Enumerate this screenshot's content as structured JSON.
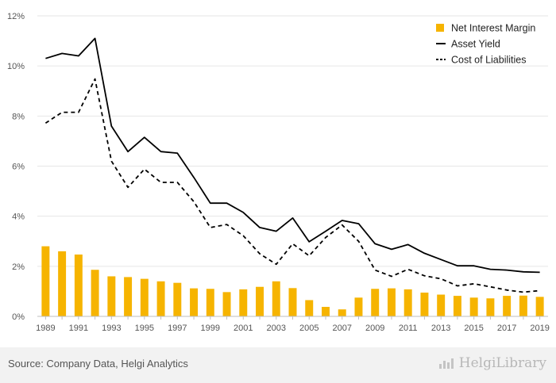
{
  "chart_data": {
    "type": "bar",
    "x": [
      1989,
      1990,
      1991,
      1992,
      1993,
      1994,
      1995,
      1996,
      1997,
      1998,
      1999,
      2000,
      2001,
      2002,
      2003,
      2004,
      2005,
      2006,
      2007,
      2008,
      2009,
      2010,
      2011,
      2012,
      2013,
      2014,
      2015,
      2016,
      2017,
      2018,
      2019
    ],
    "x_tick_labels": [
      "1989",
      "1991",
      "1993",
      "1995",
      "1997",
      "1999",
      "2001",
      "2003",
      "2005",
      "2007",
      "2009",
      "2011",
      "2013",
      "2015",
      "2017",
      "2019"
    ],
    "y_tick_labels": [
      "0%",
      "2%",
      "4%",
      "6%",
      "8%",
      "10%",
      "12%"
    ],
    "ylim": [
      0,
      12
    ],
    "grid": true,
    "legend_position": "top-right",
    "series": [
      {
        "name": "Net Interest Margin",
        "kind": "bar",
        "color": "#f6b400",
        "values": [
          2.8,
          2.6,
          2.47,
          1.86,
          1.6,
          1.57,
          1.5,
          1.4,
          1.34,
          1.12,
          1.1,
          0.97,
          1.08,
          1.18,
          1.4,
          1.13,
          0.65,
          0.38,
          0.28,
          0.75,
          1.1,
          1.12,
          1.08,
          0.95,
          0.87,
          0.82,
          0.75,
          0.72,
          0.82,
          0.83,
          0.78
        ]
      },
      {
        "name": "Asset Yield",
        "kind": "line",
        "color": "#000000",
        "dash": "solid",
        "values": [
          10.3,
          10.5,
          10.4,
          11.1,
          7.6,
          6.58,
          7.15,
          6.58,
          6.52,
          5.55,
          4.52,
          4.52,
          4.15,
          3.55,
          3.4,
          3.93,
          2.98,
          3.4,
          3.83,
          3.7,
          2.9,
          2.68,
          2.87,
          2.52,
          2.27,
          2.02,
          2.02,
          1.88,
          1.85,
          1.78,
          1.76
        ]
      },
      {
        "name": "Cost of Liabilities",
        "kind": "line",
        "color": "#000000",
        "dash": "dashed",
        "values": [
          7.72,
          8.15,
          8.15,
          9.48,
          6.2,
          5.15,
          5.88,
          5.35,
          5.35,
          4.58,
          3.55,
          3.67,
          3.22,
          2.5,
          2.08,
          2.9,
          2.42,
          3.15,
          3.65,
          3.0,
          1.85,
          1.6,
          1.88,
          1.62,
          1.5,
          1.22,
          1.3,
          1.18,
          1.05,
          0.97,
          1.03
        ]
      }
    ]
  },
  "footer": {
    "source": "Source: Company Data, Helgi Analytics",
    "brand": "HelgiLibrary"
  }
}
